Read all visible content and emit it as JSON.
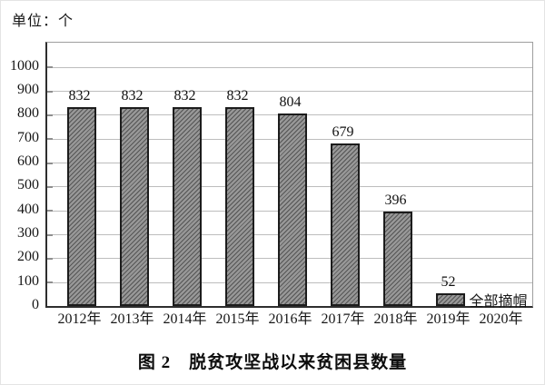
{
  "page": {
    "background": "#ffffff"
  },
  "unit_label": "单位：个",
  "caption": "图 2　脱贫攻坚战以来贫困县数量",
  "chart_data": {
    "type": "bar",
    "title": "图 2　脱贫攻坚战以来贫困县数量",
    "unit_label": "单位：个",
    "categories": [
      "2012年",
      "2013年",
      "2014年",
      "2015年",
      "2016年",
      "2017年",
      "2018年",
      "2019年",
      "2020年"
    ],
    "values": [
      832,
      832,
      832,
      832,
      804,
      679,
      396,
      52,
      null
    ],
    "value_labels": [
      "832",
      "832",
      "832",
      "832",
      "804",
      "679",
      "396",
      "52",
      ""
    ],
    "annotation": {
      "text": "全部摘帽",
      "attached_category": "2019年"
    },
    "xlabel": "",
    "ylabel": "",
    "ylim": [
      0,
      1000
    ],
    "ytick_step": 100,
    "grid": "horizontal",
    "legend": "none",
    "colors": {
      "bar_fill": "#919191",
      "bar_hatch_line": "#3a3a3a",
      "bar_border": "#1c1c1c",
      "gridline": "#bdbdbd",
      "axis": "#2e2e2e",
      "frame": "#9e9e9e",
      "text": "#111111"
    }
  }
}
